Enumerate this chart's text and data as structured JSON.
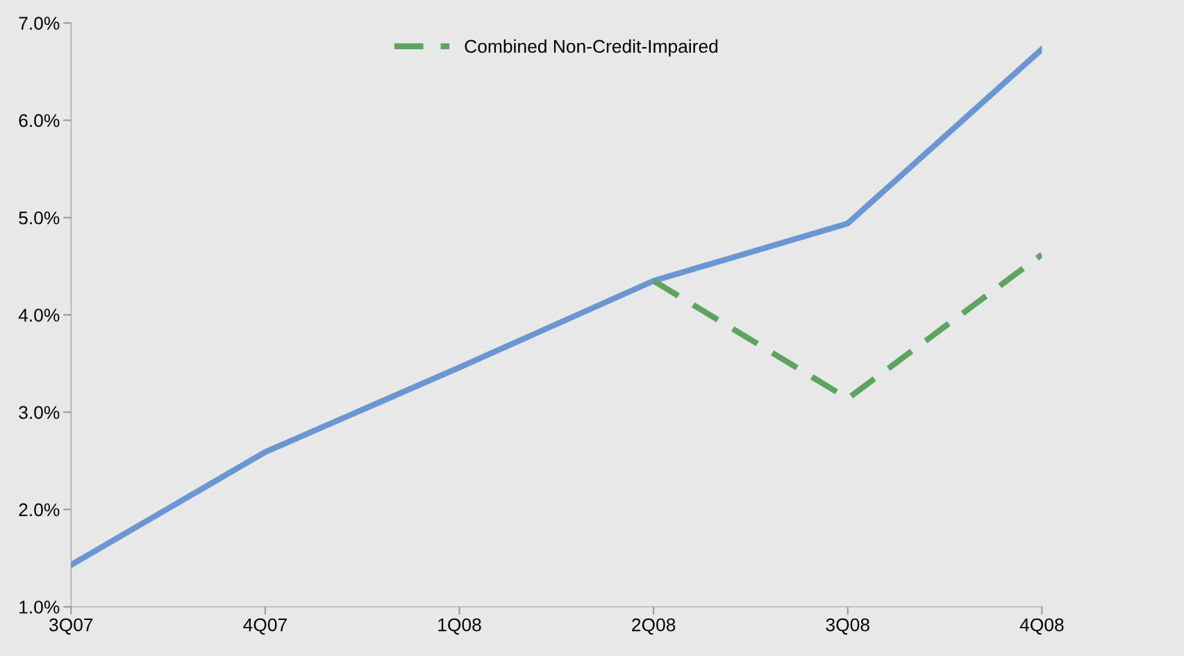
{
  "chart_data": {
    "type": "line",
    "categories": [
      "3Q07",
      "4Q07",
      "1Q08",
      "2Q08",
      "3Q08",
      "4Q08"
    ],
    "series": [
      {
        "color": "#6a96d2",
        "line_style": "solid",
        "values": [
          1.43,
          2.59,
          3.46,
          4.35,
          4.94,
          6.73
        ]
      },
      {
        "name": "Combined Non-Credit-Impaired",
        "color": "#5ea45e",
        "line_style": "dashed",
        "values": [
          null,
          null,
          null,
          4.35,
          3.14,
          4.62
        ]
      }
    ],
    "ylim": [
      1.0,
      7.0
    ],
    "yticks": [
      {
        "value": 1.0,
        "label": "1.0%"
      },
      {
        "value": 2.0,
        "label": "2.0%"
      },
      {
        "value": 3.0,
        "label": "3.0%"
      },
      {
        "value": 4.0,
        "label": "4.0%"
      },
      {
        "value": 5.0,
        "label": "5.0%"
      },
      {
        "value": 6.0,
        "label": "6.0%"
      },
      {
        "value": 7.0,
        "label": "7.0%"
      }
    ],
    "grid": false,
    "legend": "top",
    "marker": "none"
  }
}
